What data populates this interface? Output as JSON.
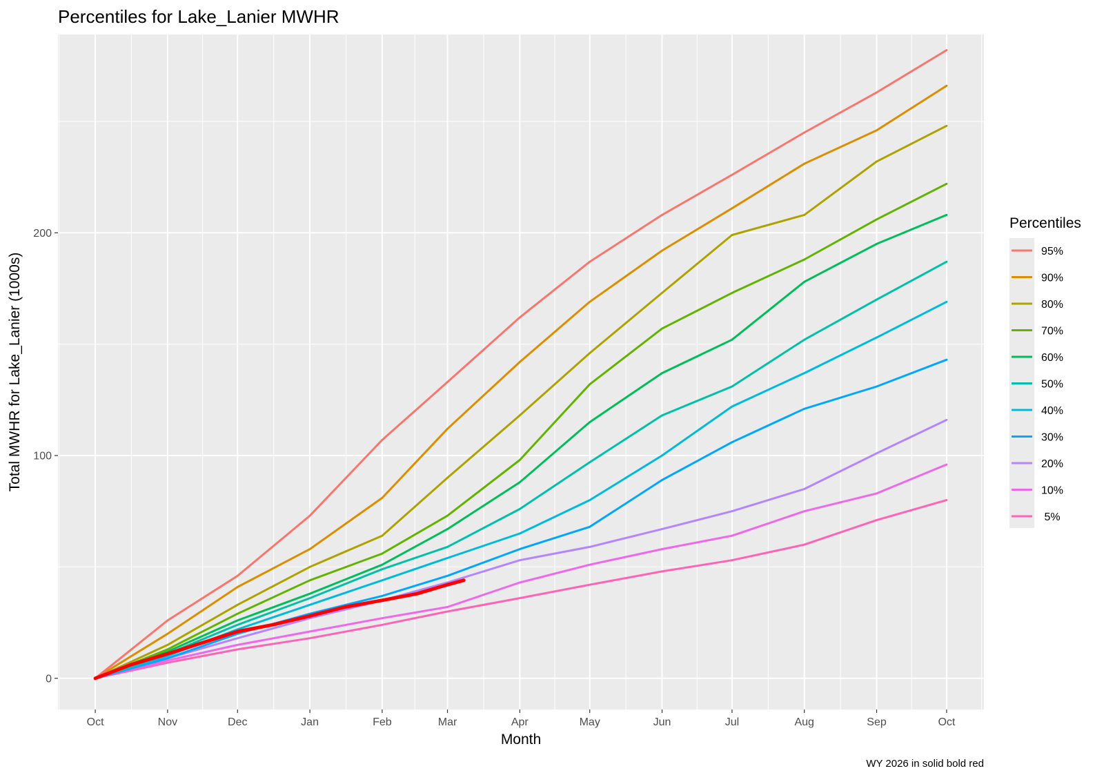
{
  "chart_data": {
    "type": "line",
    "title": "Percentiles for Lake_Lanier MWHR",
    "xlabel": "Month",
    "ylabel": "Total MWHR for Lake_Lanier  (1000s)",
    "caption": "WY 2026 in solid  bold red",
    "x_ticks": [
      "Oct",
      "Nov",
      "Dec",
      "Jan",
      "Feb",
      "Mar",
      "Apr",
      "May",
      "Jun",
      "Jul",
      "Aug",
      "Sep",
      "Oct"
    ],
    "x_tick_dates": [
      "2025-10-01",
      "2025-11-01",
      "2025-12-01",
      "2026-01-01",
      "2026-02-01",
      "2026-03-01",
      "2026-04-01",
      "2026-05-01",
      "2026-06-01",
      "2026-07-01",
      "2026-08-01",
      "2026-09-01",
      "2026-10-01"
    ],
    "xlim": [
      "2025-09-15",
      "2026-10-17"
    ],
    "y_ticks": [
      0,
      100,
      200
    ],
    "ylim": [
      -14,
      289
    ],
    "grid": true,
    "legend": {
      "title": "Percentiles",
      "position": "right"
    },
    "series": [
      {
        "name": "95%",
        "color": "#F8766D",
        "x": [
          "2025-10-01",
          "2025-11-01",
          "2025-12-01",
          "2026-01-01",
          "2026-02-01",
          "2026-03-01",
          "2026-04-01",
          "2026-05-01",
          "2026-06-01",
          "2026-07-01",
          "2026-08-01",
          "2026-09-01",
          "2026-10-01"
        ],
        "y": [
          0,
          26,
          46,
          73,
          107,
          133,
          162,
          187,
          208,
          226,
          245,
          263,
          282
        ]
      },
      {
        "name": "90%",
        "color": "#DB8E00",
        "x": [
          "2025-10-01",
          "2025-11-01",
          "2025-12-01",
          "2026-01-01",
          "2026-02-01",
          "2026-03-01",
          "2026-04-01",
          "2026-05-01",
          "2026-06-01",
          "2026-07-01",
          "2026-08-01",
          "2026-09-01",
          "2026-10-01"
        ],
        "y": [
          0,
          20,
          41,
          58,
          81,
          112,
          142,
          169,
          192,
          211,
          231,
          246,
          266
        ]
      },
      {
        "name": "80%",
        "color": "#AEA200",
        "x": [
          "2025-10-01",
          "2025-11-01",
          "2025-12-01",
          "2026-01-01",
          "2026-02-01",
          "2026-03-01",
          "2026-04-01",
          "2026-05-01",
          "2026-06-01",
          "2026-07-01",
          "2026-08-01",
          "2026-09-01",
          "2026-10-01"
        ],
        "y": [
          0,
          15,
          33,
          50,
          64,
          90,
          118,
          146,
          173,
          199,
          208,
          232,
          248
        ]
      },
      {
        "name": "70%",
        "color": "#64B200",
        "x": [
          "2025-10-01",
          "2025-11-01",
          "2025-12-01",
          "2026-01-01",
          "2026-02-01",
          "2026-03-01",
          "2026-04-01",
          "2026-05-01",
          "2026-06-01",
          "2026-07-01",
          "2026-08-01",
          "2026-09-01",
          "2026-10-01"
        ],
        "y": [
          0,
          13,
          29,
          44,
          56,
          73,
          98,
          132,
          157,
          173,
          188,
          206,
          222
        ]
      },
      {
        "name": "60%",
        "color": "#00BD5C",
        "x": [
          "2025-10-01",
          "2025-11-01",
          "2025-12-01",
          "2026-01-01",
          "2026-02-01",
          "2026-03-01",
          "2026-04-01",
          "2026-05-01",
          "2026-06-01",
          "2026-07-01",
          "2026-08-01",
          "2026-09-01",
          "2026-10-01"
        ],
        "y": [
          0,
          12,
          26,
          38,
          51,
          67,
          88,
          115,
          137,
          152,
          178,
          195,
          208
        ]
      },
      {
        "name": "50%",
        "color": "#00C1A7",
        "x": [
          "2025-10-01",
          "2025-11-01",
          "2025-12-01",
          "2026-01-01",
          "2026-02-01",
          "2026-03-01",
          "2026-04-01",
          "2026-05-01",
          "2026-06-01",
          "2026-07-01",
          "2026-08-01",
          "2026-09-01",
          "2026-10-01"
        ],
        "y": [
          0,
          11,
          24,
          36,
          49,
          59,
          76,
          97,
          118,
          131,
          152,
          170,
          187
        ]
      },
      {
        "name": "40%",
        "color": "#00BADE",
        "x": [
          "2025-10-01",
          "2025-11-01",
          "2025-12-01",
          "2026-01-01",
          "2026-02-01",
          "2026-03-01",
          "2026-04-01",
          "2026-05-01",
          "2026-06-01",
          "2026-07-01",
          "2026-08-01",
          "2026-09-01",
          "2026-10-01"
        ],
        "y": [
          0,
          10,
          22,
          33,
          44,
          54,
          65,
          80,
          100,
          122,
          137,
          153,
          169
        ]
      },
      {
        "name": "30%",
        "color": "#00A6FF",
        "x": [
          "2025-10-01",
          "2025-11-01",
          "2025-12-01",
          "2026-01-01",
          "2026-02-01",
          "2026-03-01",
          "2026-04-01",
          "2026-05-01",
          "2026-06-01",
          "2026-07-01",
          "2026-08-01",
          "2026-09-01",
          "2026-10-01"
        ],
        "y": [
          0,
          9,
          20,
          29,
          37,
          46,
          58,
          68,
          89,
          106,
          121,
          131,
          143
        ]
      },
      {
        "name": "20%",
        "color": "#B385FF",
        "x": [
          "2025-10-01",
          "2025-11-01",
          "2025-12-01",
          "2026-01-01",
          "2026-02-01",
          "2026-03-01",
          "2026-04-01",
          "2026-05-01",
          "2026-06-01",
          "2026-07-01",
          "2026-08-01",
          "2026-09-01",
          "2026-10-01"
        ],
        "y": [
          0,
          9,
          18,
          27,
          35,
          43,
          53,
          59,
          67,
          75,
          85,
          101,
          116
        ]
      },
      {
        "name": "10%",
        "color": "#EF67EB",
        "x": [
          "2025-10-01",
          "2025-11-01",
          "2025-12-01",
          "2026-01-01",
          "2026-02-01",
          "2026-03-01",
          "2026-04-01",
          "2026-05-01",
          "2026-06-01",
          "2026-07-01",
          "2026-08-01",
          "2026-09-01",
          "2026-10-01"
        ],
        "y": [
          0,
          8,
          15,
          21,
          27,
          32,
          43,
          51,
          58,
          64,
          75,
          83,
          96
        ]
      },
      {
        "name": " 5%",
        "color": "#FF63B6",
        "x": [
          "2025-10-01",
          "2025-11-01",
          "2025-12-01",
          "2026-01-01",
          "2026-02-01",
          "2026-03-01",
          "2026-04-01",
          "2026-05-01",
          "2026-06-01",
          "2026-07-01",
          "2026-08-01",
          "2026-09-01",
          "2026-10-01"
        ],
        "y": [
          0,
          7,
          13,
          18,
          24,
          30,
          36,
          42,
          48,
          53,
          60,
          71,
          80
        ]
      }
    ],
    "current_year": {
      "color": "#FF0000",
      "x": [
        "2025-10-01",
        "2025-10-16",
        "2025-11-01",
        "2025-11-16",
        "2025-12-01",
        "2025-12-16",
        "2026-01-01",
        "2026-01-16",
        "2026-02-01",
        "2026-02-16",
        "2026-03-01",
        "2026-03-08"
      ],
      "y": [
        0,
        6,
        11,
        16,
        21,
        24,
        28,
        32,
        35,
        38,
        42,
        44
      ]
    }
  }
}
